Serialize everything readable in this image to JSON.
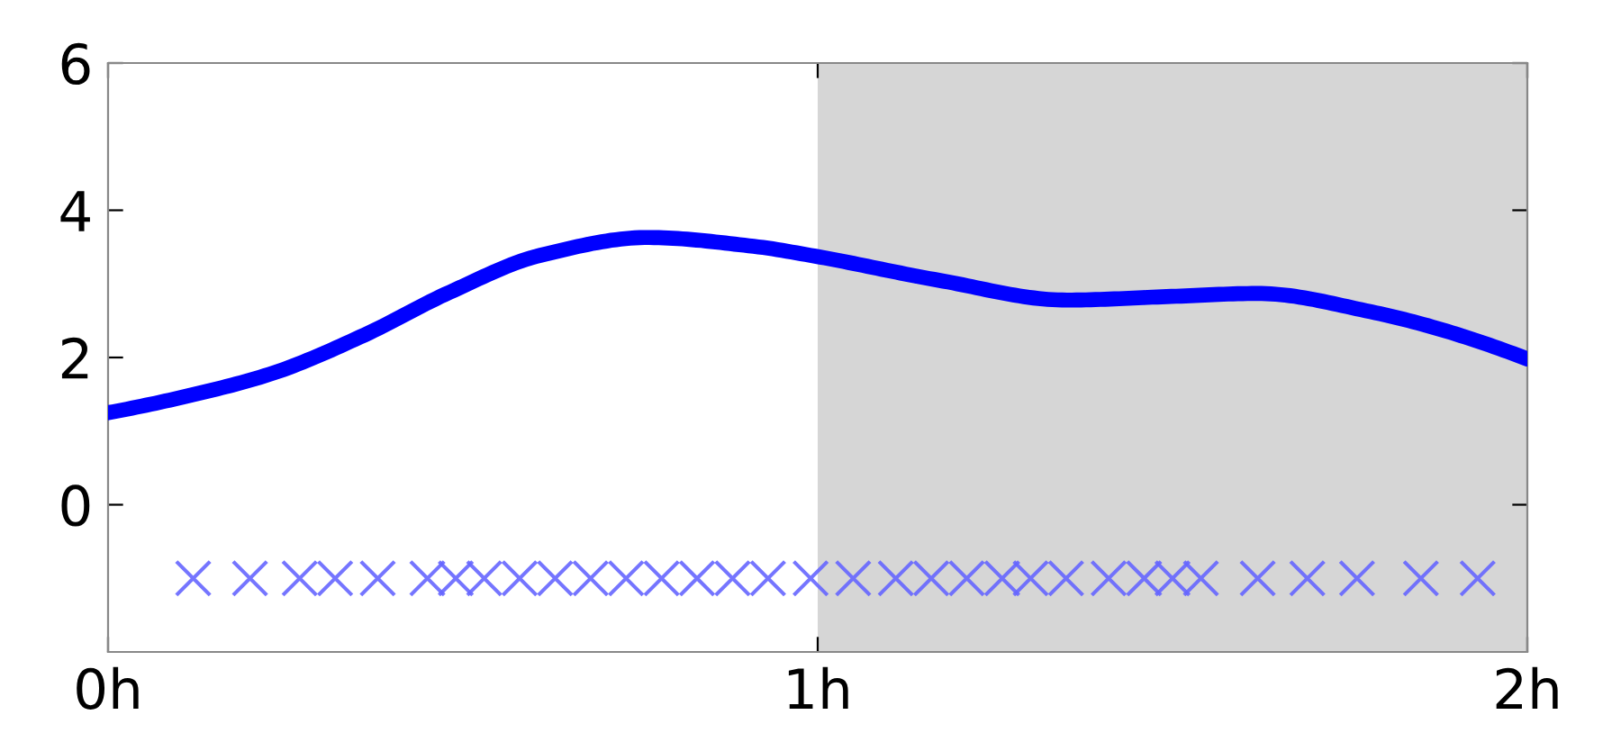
{
  "chart_data": {
    "type": "line",
    "xlim": [
      0,
      2
    ],
    "ylim": [
      -2,
      6
    ],
    "xticks": [
      {
        "value": 0,
        "label": "0h"
      },
      {
        "value": 1,
        "label": "1h"
      },
      {
        "value": 2,
        "label": "2h"
      }
    ],
    "yticks": [
      0,
      2,
      4,
      6
    ],
    "grid": false,
    "bands": [
      {
        "axis": "x",
        "from": 1,
        "to": 2,
        "color": "#d6d6d6"
      }
    ],
    "series": [
      {
        "color": "#0000ff",
        "marker": "none",
        "line_style": "solid",
        "x": [
          0,
          0.1,
          0.23,
          0.36,
          0.48,
          0.61,
          0.76,
          0.91,
          1.0,
          1.17,
          1.35,
          1.5,
          1.62,
          1.78,
          2.0
        ],
        "values": [
          1.25,
          1.45,
          1.78,
          2.3,
          2.88,
          3.39,
          3.63,
          3.51,
          3.37,
          3.05,
          2.78,
          2.83,
          2.87,
          2.62,
          1.98
        ]
      },
      {
        "type": "scatter",
        "color": "#6666ff",
        "marker": "cross",
        "x": [
          0.12,
          0.2,
          0.27,
          0.32,
          0.38,
          0.45,
          0.49,
          0.53,
          0.58,
          0.63,
          0.68,
          0.73,
          0.78,
          0.83,
          0.88,
          0.93,
          0.99,
          1.05,
          1.11,
          1.16,
          1.21,
          1.26,
          1.3,
          1.35,
          1.41,
          1.46,
          1.5,
          1.54,
          1.62,
          1.69,
          1.76,
          1.85,
          1.93
        ],
        "values": [
          -1,
          -1,
          -1,
          -1,
          -1,
          -1,
          -1,
          -1,
          -1,
          -1,
          -1,
          -1,
          -1,
          -1,
          -1,
          -1,
          -1,
          -1,
          -1,
          -1,
          -1,
          -1,
          -1,
          -1,
          -1,
          -1,
          -1,
          -1,
          -1,
          -1,
          -1,
          -1,
          -1
        ]
      }
    ]
  }
}
